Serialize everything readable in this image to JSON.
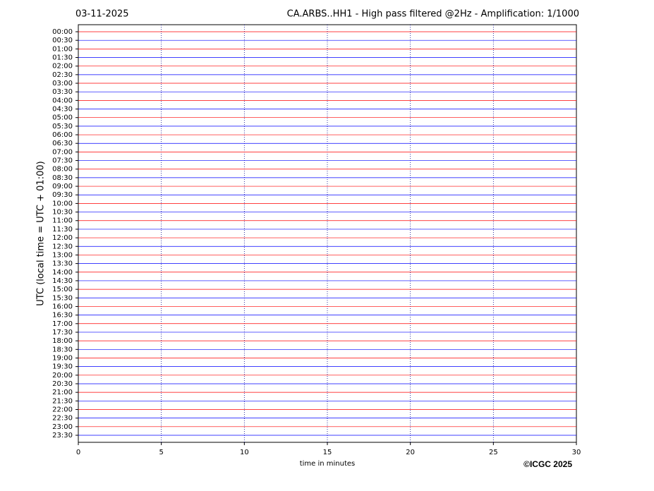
{
  "chart_data": {
    "type": "helicorder",
    "date": "03-11-2025",
    "title": "CA.ARBS..HH1 - High pass filtered @2Hz - Amplification: 1/1000",
    "ylabel": "UTC (local time = UTC + 01:00)",
    "xlabel": "time in minutes",
    "copyright": "©ICGC 2025",
    "categories": [
      "00:00",
      "00:30",
      "01:00",
      "01:30",
      "02:00",
      "02:30",
      "03:00",
      "03:30",
      "04:00",
      "04:30",
      "05:00",
      "05:30",
      "06:00",
      "06:30",
      "07:00",
      "07:30",
      "08:00",
      "08:30",
      "09:00",
      "09:30",
      "10:00",
      "10:30",
      "11:00",
      "11:30",
      "12:00",
      "12:30",
      "13:00",
      "13:30",
      "14:00",
      "14:30",
      "15:00",
      "15:30",
      "16:00",
      "16:30",
      "17:00",
      "17:30",
      "18:00",
      "18:30",
      "19:00",
      "19:30",
      "20:00",
      "20:30",
      "21:00",
      "21:30",
      "22:00",
      "22:30",
      "23:00",
      "23:30"
    ],
    "trace_colors": [
      "#ff0000",
      "#0000ff"
    ],
    "xlim": [
      0,
      30
    ],
    "xticks": [
      0,
      5,
      10,
      15,
      20,
      25,
      30
    ],
    "grid": true,
    "grid_color": "#00008b"
  }
}
